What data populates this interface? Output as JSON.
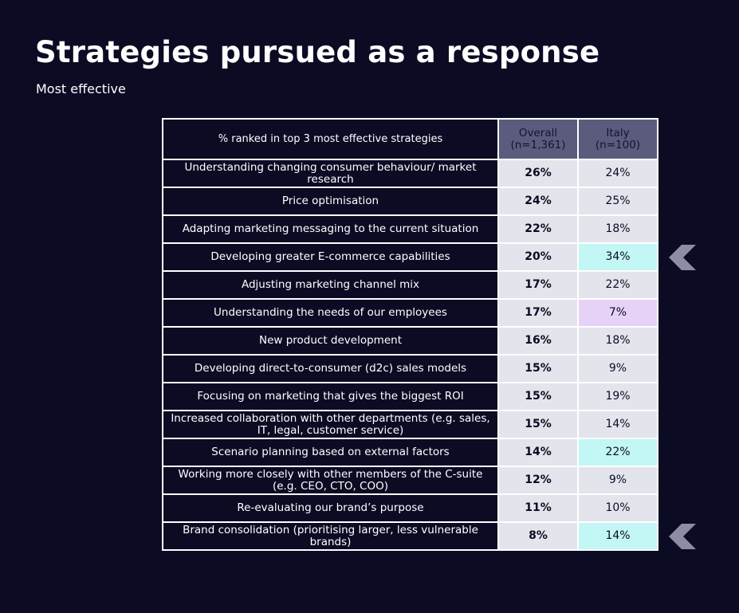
{
  "title": "Strategies pursued as a response",
  "subtitle": "Most effective",
  "colors": {
    "background": "#0b0b24",
    "header_highlight": "#5b5b7e",
    "cell_default": "#e4e4ec",
    "cell_higher": "#c2f7f5",
    "cell_lower": "#e6d2f7",
    "arrow": "#8c8ca4"
  },
  "table": {
    "header_label": "% ranked in top 3 most effective strategies",
    "overall_header": "Overall\n(n=1,361)",
    "italy_header": "Italy\n(n=100)",
    "rows": [
      {
        "label": "Understanding changing consumer behaviour/ market research",
        "overall": "26%",
        "italy": "24%",
        "highlight": "none",
        "arrow": false
      },
      {
        "label": "Price optimisation",
        "overall": "24%",
        "italy": "25%",
        "highlight": "none",
        "arrow": false
      },
      {
        "label": "Adapting marketing messaging to the current situation",
        "overall": "22%",
        "italy": "18%",
        "highlight": "none",
        "arrow": false
      },
      {
        "label": "Developing greater E-commerce capabilities",
        "overall": "20%",
        "italy": "34%",
        "highlight": "higher",
        "arrow": true
      },
      {
        "label": "Adjusting marketing channel mix",
        "overall": "17%",
        "italy": "22%",
        "highlight": "none",
        "arrow": false
      },
      {
        "label": "Understanding the needs of our employees",
        "overall": "17%",
        "italy": "7%",
        "highlight": "lower",
        "arrow": false
      },
      {
        "label": "New product development",
        "overall": "16%",
        "italy": "18%",
        "highlight": "none",
        "arrow": false
      },
      {
        "label": "Developing direct-to-consumer (d2c) sales models",
        "overall": "15%",
        "italy": "9%",
        "highlight": "none",
        "arrow": false
      },
      {
        "label": "Focusing on marketing that gives the biggest ROI",
        "overall": "15%",
        "italy": "19%",
        "highlight": "none",
        "arrow": false
      },
      {
        "label": "Increased collaboration with other departments (e.g. sales, IT, legal, customer service)",
        "overall": "15%",
        "italy": "14%",
        "highlight": "none",
        "arrow": false
      },
      {
        "label": "Scenario planning based on external factors",
        "overall": "14%",
        "italy": "22%",
        "highlight": "higher",
        "arrow": false
      },
      {
        "label": "Working more closely with other members of the C-suite (e.g. CEO, CTO, COO)",
        "overall": "12%",
        "italy": "9%",
        "highlight": "none",
        "arrow": false
      },
      {
        "label": "Re-evaluating our brand’s purpose",
        "overall": "11%",
        "italy": "10%",
        "highlight": "none",
        "arrow": false
      },
      {
        "label": "Brand consolidation (prioritising larger, less vulnerable brands)",
        "overall": "8%",
        "italy": "14%",
        "highlight": "higher",
        "arrow": true
      }
    ]
  },
  "chart_data": {
    "type": "table",
    "title": "Strategies pursued as a response",
    "subtitle": "Most effective",
    "columns": [
      "% ranked in top 3 most effective strategies",
      "Overall (n=1,361)",
      "Italy (n=100)"
    ],
    "rows": [
      [
        "Understanding changing consumer behaviour/ market research",
        "26%",
        "24%"
      ],
      [
        "Price optimisation",
        "24%",
        "25%"
      ],
      [
        "Adapting marketing messaging to the current situation",
        "22%",
        "18%"
      ],
      [
        "Developing greater E-commerce capabilities",
        "20%",
        "34%"
      ],
      [
        "Adjusting marketing channel mix",
        "17%",
        "22%"
      ],
      [
        "Understanding the needs of our employees",
        "17%",
        "7%"
      ],
      [
        "New product development",
        "16%",
        "18%"
      ],
      [
        "Developing direct-to-consumer (d2c) sales models",
        "15%",
        "9%"
      ],
      [
        "Focusing on marketing that gives the biggest ROI",
        "15%",
        "19%"
      ],
      [
        "Increased collaboration with other departments (e.g. sales, IT, legal, customer service)",
        "15%",
        "14%"
      ],
      [
        "Scenario planning based on external factors",
        "14%",
        "22%"
      ],
      [
        "Working more closely with other members of the C-suite (e.g. CEO, CTO, COO)",
        "12%",
        "9%"
      ],
      [
        "Re-evaluating our brand’s purpose",
        "11%",
        "10%"
      ],
      [
        "Brand consolidation (prioritising larger, less vulnerable brands)",
        "8%",
        "14%"
      ]
    ]
  }
}
